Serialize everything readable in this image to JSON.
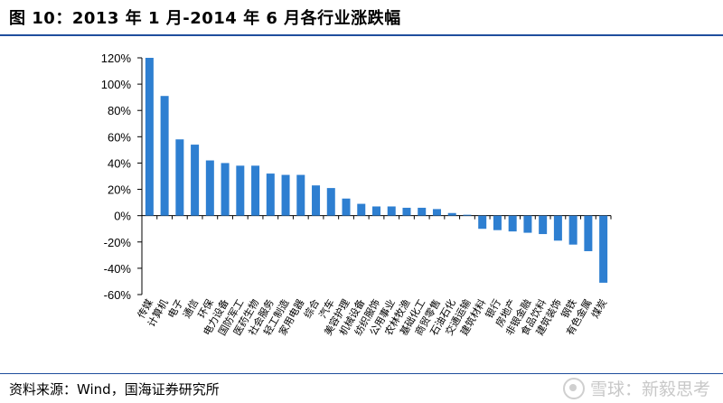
{
  "title": "图 10：2013 年 1 月-2014 年 6 月各行业涨跌幅",
  "source": "资料来源：Wind，国海证券研究所",
  "watermark": "雪球：新毅思考",
  "colors": {
    "bar": "#2e7fd1",
    "rule": "#1f4e9d"
  },
  "chart_data": {
    "type": "bar",
    "categories": [
      "传媒",
      "计算机",
      "电子",
      "通信",
      "环保",
      "电力设备",
      "国防军工",
      "医药生物",
      "社会服务",
      "轻工制造",
      "家用电器",
      "综合",
      "汽车",
      "美容护理",
      "机械设备",
      "纺织服饰",
      "公用事业",
      "农林牧渔",
      "基础化工",
      "商贸零售",
      "石油石化",
      "交通运输",
      "建筑材料",
      "银行",
      "房地产",
      "非银金融",
      "食品饮料",
      "建筑装饰",
      "钢铁",
      "有色金属",
      "煤炭"
    ],
    "values": [
      120,
      91,
      58,
      54,
      42,
      40,
      38,
      38,
      32,
      31,
      31,
      23,
      21,
      13,
      9,
      7,
      7,
      6,
      6,
      5,
      2,
      0,
      -10,
      -11,
      -12,
      -13,
      -14,
      -19,
      -22,
      -27,
      -51
    ],
    "ylim": [
      -60,
      120
    ],
    "yticks": [
      "120%",
      "100%",
      "80%",
      "60%",
      "40%",
      "20%",
      "0%",
      "-20%",
      "-40%",
      "-60%"
    ],
    "tick_values": [
      120,
      100,
      80,
      60,
      40,
      20,
      0,
      -20,
      -40,
      -60
    ],
    "grid": false,
    "legend": "none"
  }
}
